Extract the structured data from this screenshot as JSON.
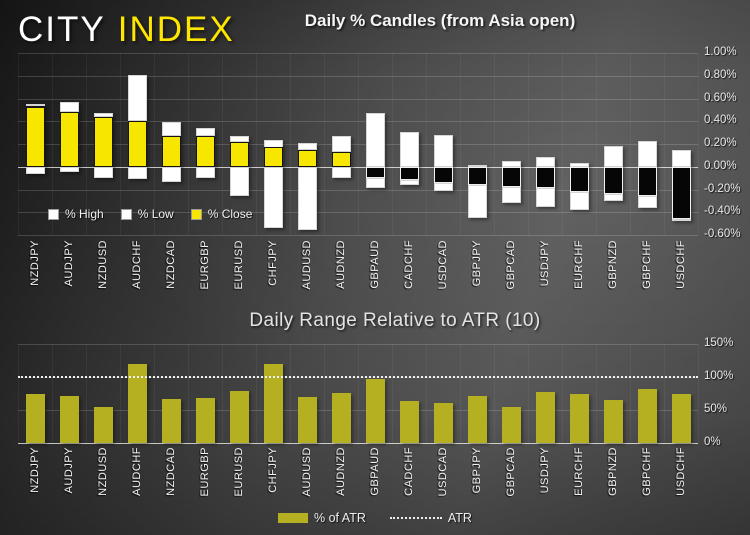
{
  "logo": {
    "part1": "CITY",
    "part2": "INDEX"
  },
  "colors": {
    "close_positive_yellow": "#F6E600",
    "close_negative_black": "#060606",
    "high_low_white": "#FFFFFF",
    "atr_bar_olive": "#B4B021",
    "brand_yellow": "#FFE600",
    "background_dark": "#3F3F3F"
  },
  "chart_data": [
    {
      "type": "bar",
      "subtype": "stacked-candle",
      "title": "Daily % Candles (from Asia open)",
      "legend_position": "inside-bottom-left",
      "grid": "horizontal",
      "ylim": [
        -0.6,
        1.0
      ],
      "yticks": [
        "1.00%",
        "0.80%",
        "0.60%",
        "0.40%",
        "0.20%",
        "0.00%",
        "-0.20%",
        "-0.40%",
        "-0.60%"
      ],
      "categories": [
        "NZDJPY",
        "AUDJPY",
        "NZDUSD",
        "AUDCHF",
        "NZDCAD",
        "EURGBP",
        "EURUSD",
        "CHFJPY",
        "AUDUSD",
        "AUDNZD",
        "GBPAUD",
        "CADCHF",
        "USDCAD",
        "GBPJPY",
        "GBPCAD",
        "USDJPY",
        "EURCHF",
        "GBPNZD",
        "GBPCHF",
        "USDCHF"
      ],
      "series": [
        {
          "name": "% High",
          "values": [
            0.55,
            0.57,
            0.47,
            0.81,
            0.39,
            0.34,
            0.27,
            0.24,
            0.21,
            0.27,
            0.47,
            0.31,
            0.28,
            0.02,
            0.05,
            0.09,
            0.03,
            0.18,
            0.23,
            0.15
          ]
        },
        {
          "name": "% Low",
          "values": [
            -0.06,
            -0.05,
            -0.1,
            -0.11,
            -0.13,
            -0.1,
            -0.26,
            -0.54,
            -0.56,
            -0.1,
            -0.19,
            -0.16,
            -0.21,
            -0.45,
            -0.32,
            -0.35,
            -0.38,
            -0.3,
            -0.36,
            -0.47
          ]
        },
        {
          "name": "% Close",
          "values": [
            0.53,
            0.48,
            0.44,
            0.4,
            0.27,
            0.27,
            0.22,
            0.17,
            0.15,
            0.13,
            -0.1,
            -0.12,
            -0.14,
            -0.16,
            -0.18,
            -0.19,
            -0.22,
            -0.24,
            -0.26,
            -0.46
          ]
        }
      ]
    },
    {
      "type": "bar",
      "title": "Daily Range Relative to ATR (10)",
      "legend_position": "bottom-center",
      "grid": "horizontal",
      "ylim": [
        0,
        150
      ],
      "yticks": [
        "150%",
        "100%",
        "50%",
        "0%"
      ],
      "atr_reference_line": 100,
      "atr_label": "ATR",
      "categories": [
        "NZDJPY",
        "AUDJPY",
        "NZDUSD",
        "AUDCHF",
        "NZDCAD",
        "EURGBP",
        "EURUSD",
        "CHFJPY",
        "AUDUSD",
        "AUDNZD",
        "GBPAUD",
        "CADCHF",
        "USDCAD",
        "GBPJPY",
        "GBPCAD",
        "USDJPY",
        "EURCHF",
        "GBPNZD",
        "GBPCHF",
        "USDCHF"
      ],
      "series": [
        {
          "name": "% of ATR",
          "values": [
            74,
            71,
            55,
            120,
            67,
            68,
            79,
            120,
            70,
            76,
            97,
            64,
            60,
            71,
            54,
            77,
            75,
            65,
            82,
            75
          ]
        }
      ]
    }
  ]
}
